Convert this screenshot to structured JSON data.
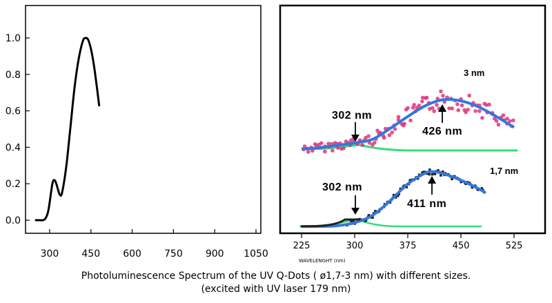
{
  "caption": {
    "line1": "Photoluminescence  Spectrum of the UV Q-Dots ( ø1,7-3 nm) with different sizes.",
    "line2": "(excited with UV laser 179 nm)"
  },
  "chart_data": [
    {
      "type": "line",
      "title": "",
      "xlabel": "",
      "ylabel": "",
      "xlim": [
        235,
        1065
      ],
      "ylim": [
        -0.05,
        1.12
      ],
      "xticks": [
        "300",
        "450",
        "600",
        "750",
        "900",
        "1050"
      ],
      "yticks": [
        "0.0",
        "0.2",
        "0.4",
        "0.6",
        "0.8",
        "1.0"
      ],
      "grid": false,
      "series": [
        {
          "x": [
            250,
            265,
            275,
            285,
            295,
            305,
            310,
            315,
            322,
            330,
            337,
            345,
            360,
            375,
            390,
            405,
            420,
            430,
            440,
            450,
            460,
            470,
            480
          ],
          "y": [
            0.0,
            0.0,
            0.0,
            0.01,
            0.05,
            0.15,
            0.2,
            0.22,
            0.21,
            0.17,
            0.14,
            0.15,
            0.29,
            0.5,
            0.72,
            0.88,
            0.98,
            1.0,
            0.99,
            0.94,
            0.86,
            0.75,
            0.63
          ]
        }
      ]
    },
    {
      "type": "line",
      "xlabel": "WAVELENGHT (nm)",
      "xlim": [
        210,
        545
      ],
      "xticks": [
        "225",
        "300",
        "375",
        "450",
        "525"
      ],
      "curves": [
        {
          "label": "3  nm",
          "peak_labels": [
            "302 nm",
            "426 nm"
          ],
          "x": [
            225,
            250,
            275,
            300,
            325,
            350,
            375,
            400,
            425,
            450,
            475,
            500,
            525
          ],
          "y": [
            0.06,
            0.08,
            0.12,
            0.16,
            0.22,
            0.4,
            0.6,
            0.78,
            0.88,
            0.86,
            0.76,
            0.6,
            0.42
          ]
        },
        {
          "label": "1,7  nm",
          "peak_labels": [
            "302 nm",
            "411 nm"
          ],
          "x": [
            225,
            250,
            275,
            300,
            325,
            350,
            375,
            400,
            411,
            425,
            450,
            475,
            485
          ],
          "y": [
            0.0,
            0.0,
            0.01,
            0.06,
            0.18,
            0.42,
            0.7,
            0.88,
            0.9,
            0.87,
            0.76,
            0.62,
            0.55
          ]
        }
      ]
    }
  ]
}
